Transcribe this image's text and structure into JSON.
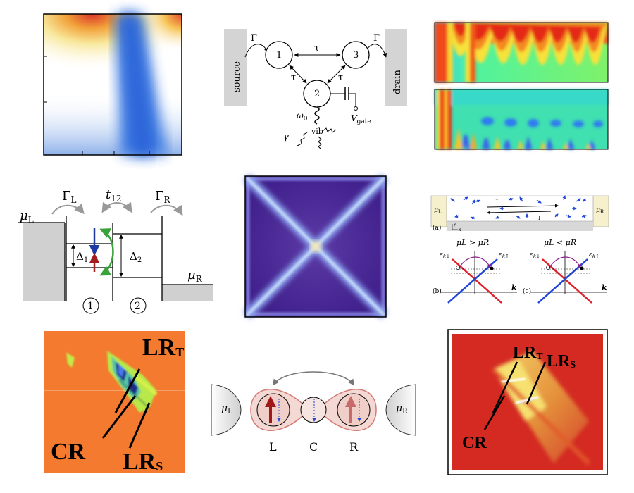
{
  "panel_a": {
    "ticks": ""
  },
  "panel_b": {
    "source": "source",
    "drain": "drain",
    "gamma_left": "Γ",
    "gamma_right": "Γ",
    "tau_top": "τ",
    "tau_left": "τ",
    "tau_right": "τ",
    "dot1": "1",
    "dot2": "2",
    "dot3": "3",
    "omega0": "ω",
    "omega0_sub": "0",
    "vib": "vib",
    "gamma_small": "γ",
    "vgate": "V",
    "vgate_sub": "gate"
  },
  "panel_d": {
    "gamma_l": "Γ",
    "gamma_l_sub": "L",
    "t12": "t",
    "t12_sub": "12",
    "gamma_r": "Γ",
    "gamma_r_sub": "R",
    "mu_l": "μ",
    "mu_l_sub": "L",
    "mu_r": "μ",
    "mu_r_sub": "R",
    "delta1": "Δ",
    "delta1_sub": "1",
    "delta2": "Δ",
    "delta2_sub": "2",
    "site1": "1",
    "site2": "2"
  },
  "panel_f": {
    "mu_l": "μ",
    "mu_l_sub": "L",
    "mu_r": "μ",
    "mu_r_sub": "R",
    "label_a": "(a)",
    "label_b": "(b)",
    "label_c": "(c)",
    "cond_b": "μL > μR",
    "cond_c": "μL < μR",
    "eps_down": "ε",
    "eps_down_sub": "k↓",
    "eps_up": "ε",
    "eps_up_sub": "k↑",
    "k": "k",
    "spin_up": "↑",
    "spin_down": "↓",
    "axis_y": "y",
    "axis_x": "x"
  },
  "panel_g": {
    "lr_t": "LR",
    "lr_t_sub": "T",
    "cr": "CR",
    "lr_s": "LR",
    "lr_s_sub": "S"
  },
  "panel_h": {
    "mu_l": "μ",
    "mu_l_sub": "L",
    "mu_r": "μ",
    "mu_r_sub": "R",
    "label_l": "L",
    "label_c": "C",
    "label_r": "R"
  },
  "panel_i": {
    "lr_t": "LR",
    "lr_t_sub": "T",
    "lr_s": "LR",
    "lr_s_sub": "S",
    "cr": "CR"
  }
}
